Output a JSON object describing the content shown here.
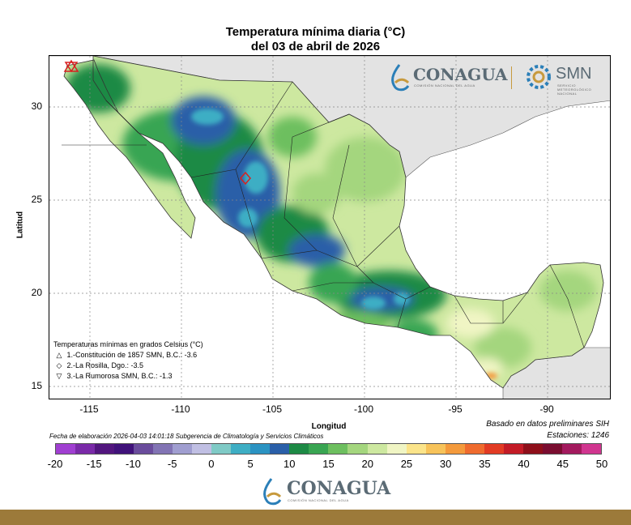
{
  "title": {
    "line1": "Temperatura mínima diaria (°C)",
    "line2": "del 03 de abril de 2026"
  },
  "axes": {
    "xlabel": "Longitud",
    "ylabel": "Latitud",
    "xticks": [
      "-115",
      "-110",
      "-105",
      "-100",
      "-95",
      "-90"
    ],
    "yticks": [
      "30",
      "25",
      "20",
      "15"
    ],
    "lon_range": [
      -117.3,
      -86.7
    ],
    "lat_range": [
      14.2,
      32.6
    ]
  },
  "legend": {
    "heading": "Temperaturas mínimas en grados Celsius (°C)",
    "entries": [
      {
        "symbol": "△",
        "text": "1.-Constitución de 1857 SMN, B.C.: -3.6"
      },
      {
        "symbol": "◇",
        "text": "2.-La Rosilla, Dgo.: -3.5"
      },
      {
        "symbol": "▽",
        "text": "3.-La Rumorosa SMN, B.C.: -1.3"
      }
    ]
  },
  "footnote": "Fecha de elaboración 2026-04-03 14:01:18 Subgerencia de Climatología y Servicios Climáticos",
  "notes": {
    "source": "Basado en datos preliminares SIH",
    "stations": "Estaciones:  1246"
  },
  "colorbar": {
    "ticks": [
      "-20",
      "-15",
      "-10",
      "-5",
      "0",
      "5",
      "10",
      "15",
      "20",
      "25",
      "30",
      "35",
      "40",
      "45",
      "50"
    ],
    "colors": [
      "#a03fd1",
      "#7a2aa8",
      "#52167e",
      "#40127a",
      "#6a4c9c",
      "#8274b4",
      "#a09ed0",
      "#c0bfe3",
      "#7fcac6",
      "#3eaec4",
      "#2b93c2",
      "#2a5fa8",
      "#1d8a45",
      "#39a552",
      "#6dbf5f",
      "#a4d67e",
      "#cde8a0",
      "#f0f5c4",
      "#fbe48a",
      "#f7c35a",
      "#f49a3c",
      "#ef6b2e",
      "#e23b24",
      "#c31b26",
      "#8e0f1a",
      "#7a0d30",
      "#a31a5e",
      "#d0358f"
    ]
  },
  "logos": {
    "top_left_word": "CONAGUA",
    "top_left_sub": "COMISIÓN NACIONAL DEL AGUA",
    "top_right_word": "SMN",
    "top_right_sub": "SERVICIO METEOROLÓGICO NACIONAL",
    "bottom_word": "CONAGUA",
    "bottom_sub": "COMISIÓN NACIONAL DEL AGUA"
  }
}
